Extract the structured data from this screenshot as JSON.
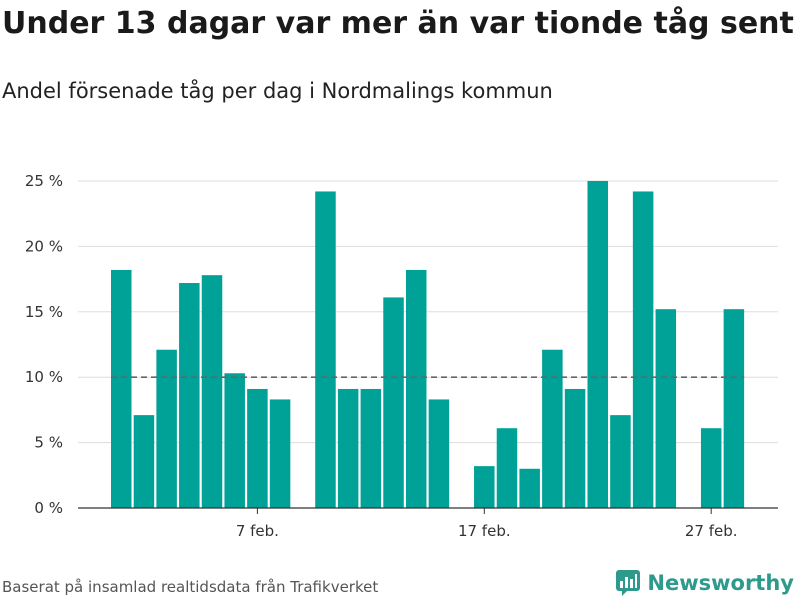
{
  "header": {
    "title": "Under 13 dagar var mer än var tionde tåg sent",
    "subtitle": "Andel försenade tåg per dag i Nordmalings kommun"
  },
  "footer": {
    "source": "Baserat på insamlad realtidsdata från Trafikverket",
    "brand": "Newsworthy",
    "brand_icon": "newsworthy-logo-icon"
  },
  "colors": {
    "bar": "#00a197",
    "reference_line": "#666666",
    "grid": "#dddddd",
    "brand": "#2e9a8c"
  },
  "chart_data": {
    "type": "bar",
    "x_unit": "day",
    "x": [
      "1 feb.",
      "2 feb.",
      "3 feb.",
      "4 feb.",
      "5 feb.",
      "6 feb.",
      "7 feb.",
      "8 feb.",
      "9 feb.",
      "10 feb.",
      "11 feb.",
      "12 feb.",
      "13 feb.",
      "14 feb.",
      "15 feb.",
      "16 feb.",
      "17 feb.",
      "18 feb.",
      "19 feb.",
      "20 feb.",
      "21 feb.",
      "22 feb.",
      "23 feb.",
      "24 feb.",
      "25 feb.",
      "26 feb.",
      "27 feb.",
      "28 feb."
    ],
    "values": [
      18.2,
      7.1,
      12.1,
      17.2,
      17.8,
      10.3,
      9.1,
      8.3,
      null,
      24.2,
      9.1,
      9.1,
      16.1,
      18.2,
      8.3,
      null,
      3.2,
      6.1,
      3.0,
      12.1,
      9.1,
      25.0,
      7.1,
      24.2,
      15.2,
      null,
      6.1,
      15.2
    ],
    "unit": "%",
    "reference_line": {
      "value": 10,
      "style": "dashed"
    },
    "ylim": [
      0,
      25
    ],
    "yticks": [
      0,
      5,
      10,
      15,
      20,
      25
    ],
    "ytick_labels": [
      "0 %",
      "5 %",
      "10 %",
      "15 %",
      "20 %",
      "25 %"
    ],
    "xtick_labels": [
      "7 feb.",
      "17 feb.",
      "27 feb."
    ],
    "xtick_positions": [
      6,
      16,
      26
    ],
    "grid": "horizontal",
    "xlabel": "",
    "ylabel": ""
  }
}
